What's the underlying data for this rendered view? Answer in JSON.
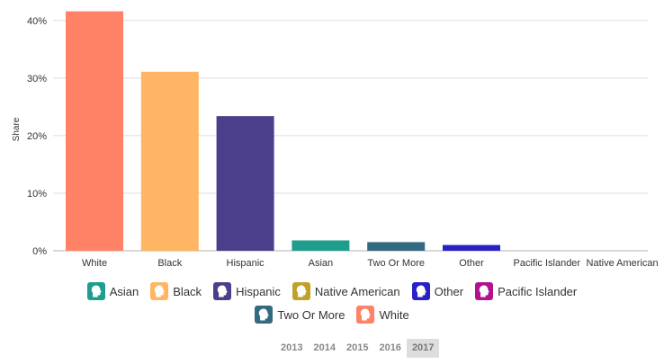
{
  "chart_data": {
    "type": "bar",
    "ylabel": "Share",
    "xlabel": "",
    "ylim": [
      0,
      0.42
    ],
    "yticks": [
      {
        "value": 0,
        "label": "0%"
      },
      {
        "value": 0.1,
        "label": "10%"
      },
      {
        "value": 0.2,
        "label": "20%"
      },
      {
        "value": 0.3,
        "label": "30%"
      },
      {
        "value": 0.4,
        "label": "40%"
      }
    ],
    "grid": true,
    "legend_position": "bottom",
    "categories": [
      "White",
      "Black",
      "Hispanic",
      "Asian",
      "Two Or More",
      "Other",
      "Pacific Islander",
      "Native American"
    ],
    "values": [
      0.416,
      0.311,
      0.234,
      0.018,
      0.015,
      0.01,
      0.0,
      0.0
    ],
    "colors": [
      "#ff8166",
      "#ffb563",
      "#4b3f8c",
      "#1f9e8e",
      "#336a81",
      "#2a21c4",
      "#b3128e",
      "#c2a12b"
    ]
  },
  "legend": {
    "row1": [
      {
        "label": "Asian",
        "color": "#1f9e8e"
      },
      {
        "label": "Black",
        "color": "#ffb563"
      },
      {
        "label": "Hispanic",
        "color": "#4b3f8c"
      },
      {
        "label": "Native American",
        "color": "#c2a12b"
      },
      {
        "label": "Other",
        "color": "#2a21c4"
      },
      {
        "label": "Pacific Islander",
        "color": "#b3128e"
      }
    ],
    "row2": [
      {
        "label": "Two Or More",
        "color": "#336a81"
      },
      {
        "label": "White",
        "color": "#ff8166"
      }
    ]
  },
  "years": {
    "options": [
      "2013",
      "2014",
      "2015",
      "2016",
      "2017"
    ],
    "selected": "2017"
  },
  "icons": {
    "legend_icon": "person-head-icon"
  }
}
